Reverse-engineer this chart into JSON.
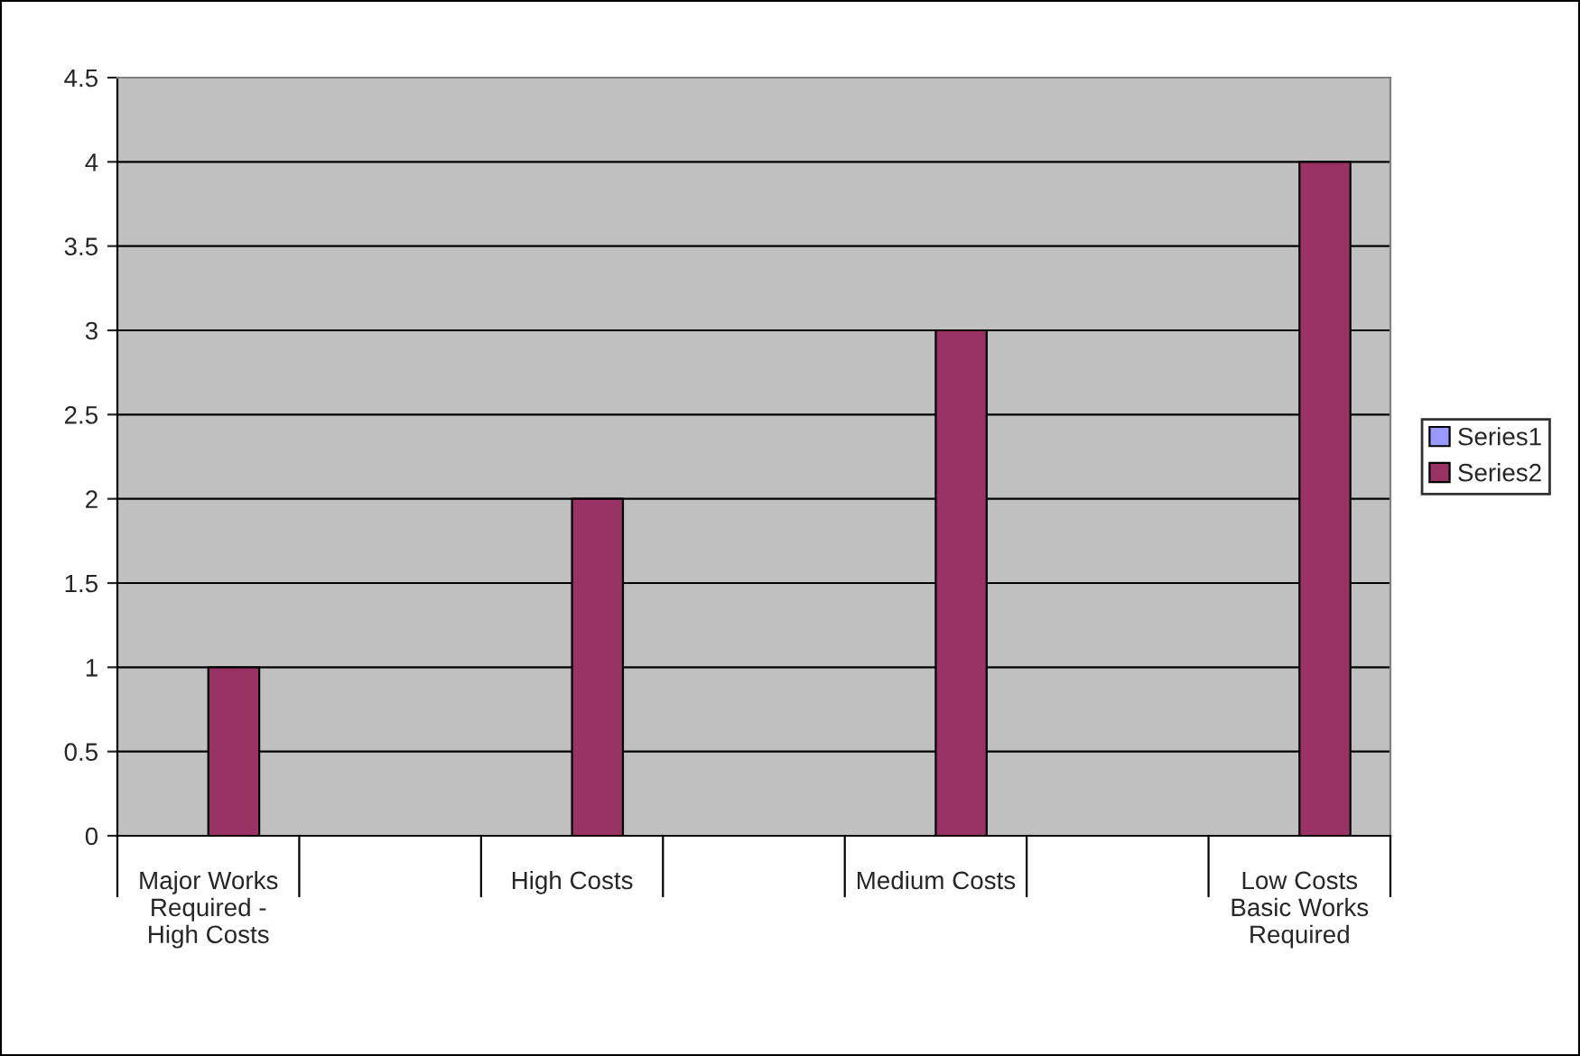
{
  "chart_data": {
    "type": "bar",
    "categories": [
      "Major Works Required - High Costs",
      null,
      "High Costs",
      null,
      "Medium Costs",
      null,
      "Low Costs Basic Works Required"
    ],
    "series": [
      {
        "name": "Series1",
        "color": "#9999ff",
        "values": [
          null,
          null,
          null,
          null,
          null,
          null,
          null
        ]
      },
      {
        "name": "Series2",
        "color": "#993366",
        "values": [
          1,
          null,
          2,
          null,
          3,
          null,
          4
        ]
      }
    ],
    "ylim": [
      0,
      4.5
    ],
    "yticks": [
      0,
      0.5,
      1,
      1.5,
      2,
      2.5,
      3,
      3.5,
      4,
      4.5
    ],
    "grid": "y",
    "legend": "right"
  }
}
